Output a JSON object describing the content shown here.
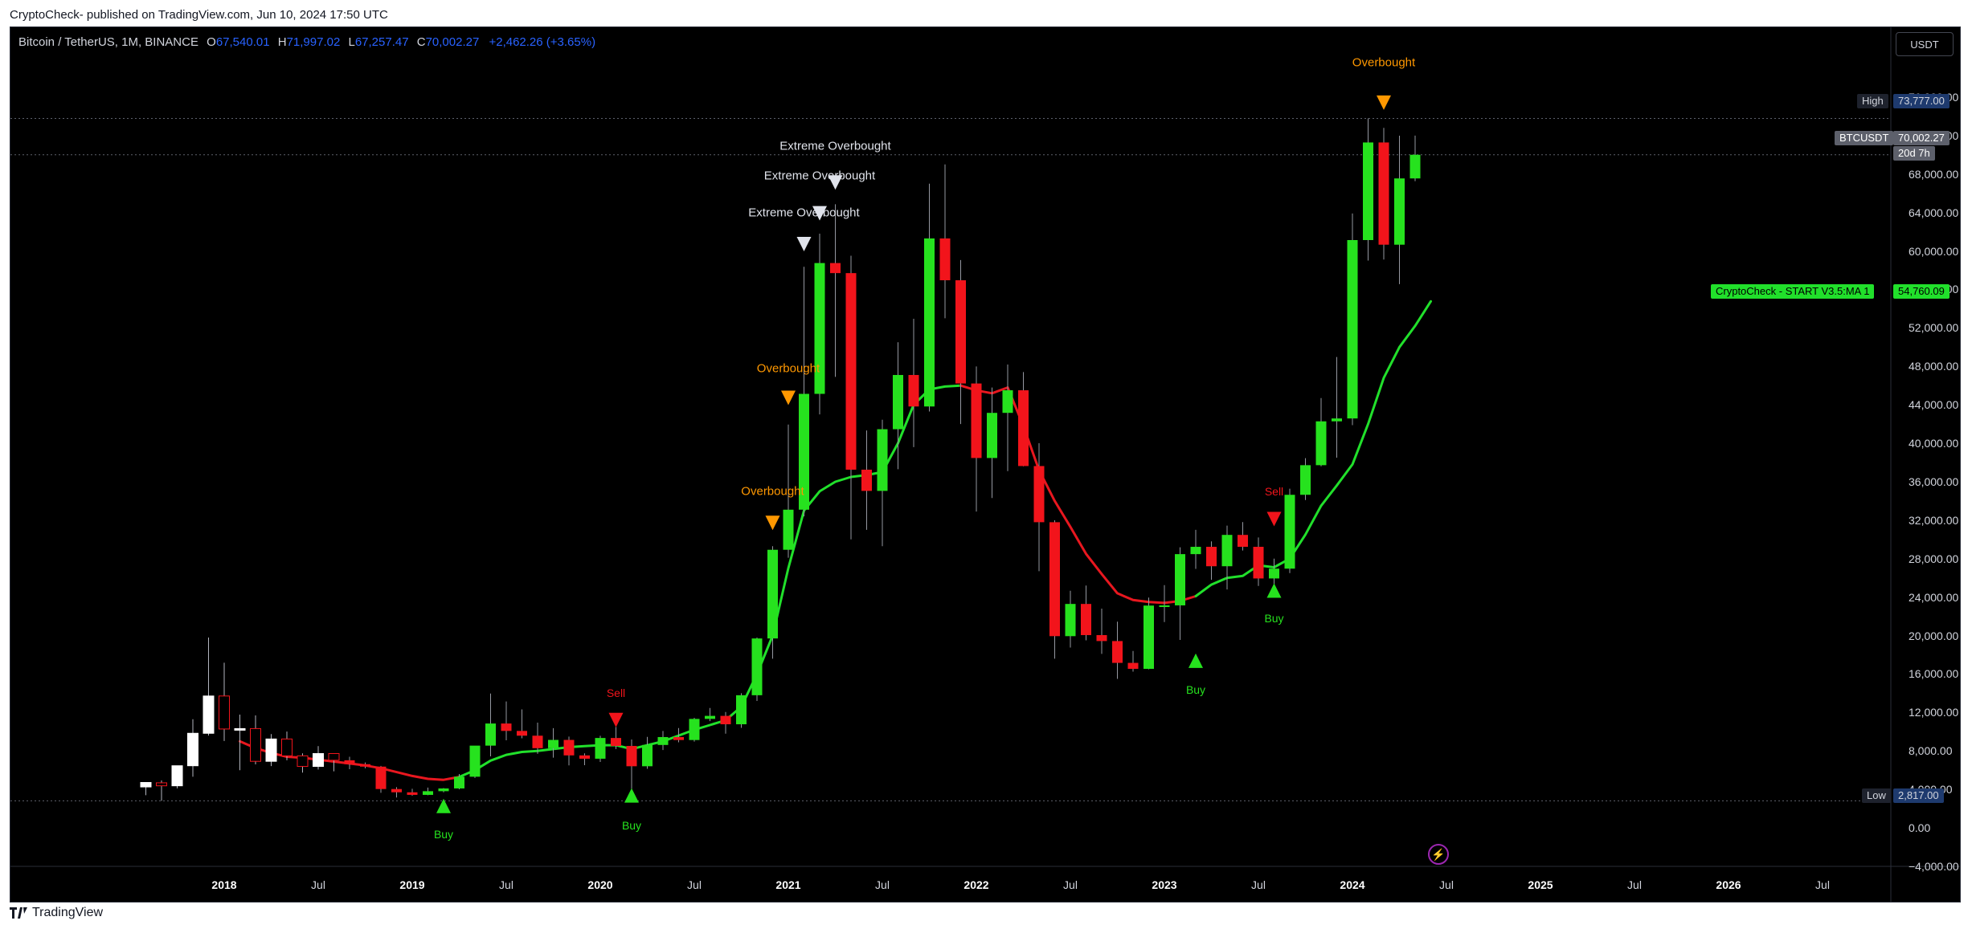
{
  "header": {
    "published_text": "CryptoCheck- published on TradingView.com, Jun 10, 2024 17:50 UTC"
  },
  "symbol_bar": {
    "title": "Bitcoin / TetherUS, 1M, BINANCE",
    "open_label": "O",
    "open": "67,540.01",
    "high_label": "H",
    "high": "71,997.02",
    "low_label": "L",
    "low": "67,257.47",
    "close_label": "C",
    "close": "70,002.27",
    "change": "+2,462.26 (+3.65%)"
  },
  "currency_button": "USDT",
  "price_tags": {
    "high_label": "High",
    "high_value": "73,777.00",
    "current_symbol": "BTCUSDT",
    "current_value": "70,002.27",
    "countdown": "20d 7h",
    "ma_label": "CryptoCheck - START V3.5:MA 1",
    "ma_value": "54,760.09",
    "low_label": "Low",
    "low_value": "2,817.00"
  },
  "footer": {
    "brand": "TradingView"
  },
  "colors": {
    "background": "#000000",
    "up": "#26e21e",
    "down": "#f2141b",
    "ma_up": "#21e02b",
    "ma_down": "#e8171f",
    "overbought": "#ff9800",
    "extreme": "#e0e3eb",
    "pre_candle": "#ffffff",
    "axis_text": "#d1d4dc"
  },
  "chart_data": {
    "type": "candlestick",
    "symbol": "Bitcoin / TetherUS",
    "interval": "1M",
    "exchange": "BINANCE",
    "ylim": [
      -4000,
      80000
    ],
    "y_ticks": [
      -4000,
      0,
      4000,
      8000,
      12000,
      16000,
      20000,
      24000,
      28000,
      32000,
      36000,
      40000,
      44000,
      48000,
      52000,
      56000,
      60000,
      64000,
      68000,
      72000,
      76000
    ],
    "y_tick_labels": [
      "−4,000.00",
      "0.00",
      "4,000.00",
      "8,000.00",
      "12,000.00",
      "16,000.00",
      "20,000.00",
      "24,000.00",
      "28,000.00",
      "32,000.00",
      "36,000.00",
      "40,000.00",
      "44,000.00",
      "48,000.00",
      "52,000.00",
      "56,000.00",
      "60,000.00",
      "64,000.00",
      "68,000.00",
      "72,000.00",
      "76,000.00"
    ],
    "x_ticks": [
      {
        "label": "2018",
        "date": "2018-01",
        "year": true
      },
      {
        "label": "Jul",
        "date": "2018-07",
        "year": false
      },
      {
        "label": "2019",
        "date": "2019-01",
        "year": true
      },
      {
        "label": "Jul",
        "date": "2019-07",
        "year": false
      },
      {
        "label": "2020",
        "date": "2020-01",
        "year": true
      },
      {
        "label": "Jul",
        "date": "2020-07",
        "year": false
      },
      {
        "label": "2021",
        "date": "2021-01",
        "year": true
      },
      {
        "label": "Jul",
        "date": "2021-07",
        "year": false
      },
      {
        "label": "2022",
        "date": "2022-01",
        "year": true
      },
      {
        "label": "Jul",
        "date": "2022-07",
        "year": false
      },
      {
        "label": "2023",
        "date": "2023-01",
        "year": true
      },
      {
        "label": "Jul",
        "date": "2023-07",
        "year": false
      },
      {
        "label": "2024",
        "date": "2024-01",
        "year": true
      },
      {
        "label": "Jul",
        "date": "2024-07",
        "year": false
      },
      {
        "label": "2025",
        "date": "2025-01",
        "year": true
      },
      {
        "label": "Jul",
        "date": "2025-07",
        "year": false
      },
      {
        "label": "2026",
        "date": "2026-01",
        "year": true
      },
      {
        "label": "Jul",
        "date": "2026-07",
        "year": false
      }
    ],
    "first_month": "2017-08",
    "ohlc": [
      [
        4261,
        4745,
        3400,
        4724
      ],
      [
        4689,
        4939,
        2817,
        4378
      ],
      [
        4378,
        6470,
        4110,
        6463
      ],
      [
        6463,
        11300,
        5325,
        9838
      ],
      [
        9838,
        19798,
        9600,
        13716
      ],
      [
        13716,
        17176,
        9035,
        10285
      ],
      [
        10285,
        11786,
        6000,
        10326
      ],
      [
        10326,
        11700,
        6600,
        6923
      ],
      [
        6923,
        9759,
        6425,
        9246
      ],
      [
        9246,
        10020,
        7032,
        7494
      ],
      [
        7494,
        7754,
        5750,
        6391
      ],
      [
        6391,
        8507,
        6070,
        7730
      ],
      [
        7730,
        7500,
        5880,
        7033
      ],
      [
        7033,
        7400,
        6100,
        6625
      ],
      [
        6625,
        6800,
        6200,
        6371
      ],
      [
        6371,
        6450,
        3652,
        4041
      ],
      [
        4041,
        4236,
        3156,
        3702
      ],
      [
        3702,
        4069,
        3349,
        3434
      ],
      [
        3434,
        4198,
        3400,
        3817
      ],
      [
        3817,
        4140,
        3700,
        4103
      ],
      [
        4103,
        5600,
        4012,
        5321
      ],
      [
        5321,
        8300,
        5200,
        8555
      ],
      [
        8555,
        13970,
        7440,
        10855
      ],
      [
        10855,
        13147,
        9110,
        10085
      ],
      [
        10085,
        12325,
        9320,
        9588
      ],
      [
        9588,
        10950,
        7700,
        8289
      ],
      [
        8289,
        10370,
        7300,
        9150
      ],
      [
        9150,
        9500,
        6500,
        7540
      ],
      [
        7540,
        7750,
        6526,
        7195
      ],
      [
        7195,
        9578,
        6850,
        9350
      ],
      [
        9350,
        10500,
        8200,
        8523
      ],
      [
        8523,
        9190,
        3782,
        6410
      ],
      [
        6410,
        9468,
        6150,
        8624
      ],
      [
        8624,
        10080,
        8100,
        9446
      ],
      [
        9446,
        10380,
        8900,
        9137
      ],
      [
        9137,
        11444,
        8970,
        11335
      ],
      [
        11335,
        12468,
        11100,
        11650
      ],
      [
        11650,
        12050,
        9800,
        10776
      ],
      [
        10776,
        14000,
        10400,
        13797
      ],
      [
        13797,
        19800,
        13200,
        19700
      ],
      [
        19700,
        29300,
        17600,
        28923
      ],
      [
        28923,
        41950,
        28100,
        33092
      ],
      [
        33092,
        58350,
        32400,
        45137
      ],
      [
        45137,
        61800,
        43000,
        58740
      ],
      [
        58740,
        64854,
        46900,
        57694
      ],
      [
        57694,
        59500,
        30000,
        37253
      ],
      [
        37253,
        41330,
        31000,
        35046
      ],
      [
        35046,
        42450,
        29300,
        41462
      ],
      [
        41462,
        50500,
        37300,
        47100
      ],
      [
        47100,
        52950,
        39600,
        43824
      ],
      [
        43824,
        67000,
        43300,
        61300
      ],
      [
        61300,
        69000,
        53000,
        56950
      ],
      [
        56950,
        59050,
        42000,
        46216
      ],
      [
        46216,
        47990,
        32900,
        38466
      ],
      [
        38466,
        45800,
        34300,
        43160
      ],
      [
        43160,
        48190,
        37100,
        45510
      ],
      [
        45510,
        47400,
        37600,
        37630
      ],
      [
        37630,
        40000,
        26700,
        31790
      ],
      [
        31790,
        31990,
        17600,
        19940
      ],
      [
        19940,
        24660,
        18750,
        23290
      ],
      [
        23290,
        25200,
        19500,
        20050
      ],
      [
        20050,
        22800,
        18100,
        19430
      ],
      [
        19430,
        21450,
        15500,
        17160
      ],
      [
        17160,
        18400,
        16250,
        16540
      ],
      [
        16540,
        23950,
        16500,
        23120
      ],
      [
        23120,
        25250,
        21400,
        23140
      ],
      [
        23140,
        29180,
        19550,
        28470
      ],
      [
        28470,
        31000,
        26940,
        29230
      ],
      [
        29230,
        29800,
        25800,
        27210
      ],
      [
        27210,
        31430,
        24800,
        30470
      ],
      [
        30470,
        31800,
        28850,
        29230
      ],
      [
        29230,
        30200,
        25160,
        25940
      ],
      [
        25940,
        28000,
        24900,
        26960
      ],
      [
        26960,
        35280,
        26500,
        34640
      ],
      [
        34640,
        38450,
        34100,
        37720
      ],
      [
        37720,
        44700,
        37600,
        42280
      ],
      [
        42280,
        48970,
        38500,
        42580
      ],
      [
        42580,
        63900,
        41880,
        61130
      ],
      [
        61130,
        73777,
        59000,
        71280
      ],
      [
        71280,
        72800,
        59100,
        60650
      ],
      [
        60650,
        71980,
        56550,
        67540
      ],
      [
        67540,
        71997,
        67257,
        70002
      ]
    ],
    "ma_series": [
      {
        "from": "2018-02",
        "to": "2019-04",
        "color": "down",
        "values": [
          9000,
          8300,
          7800,
          7400,
          7300,
          7100,
          6900,
          6700,
          6500,
          6200,
          5800,
          5400,
          5100,
          5000,
          5300
        ]
      },
      {
        "from": "2019-04",
        "to": "2020-03",
        "color": "up",
        "values": [
          5300,
          6000,
          7000,
          7600,
          7900,
          8000,
          8200,
          8400,
          8500,
          8600,
          8600,
          8200
        ]
      },
      {
        "from": "2020-03",
        "to": "2021-06",
        "color": "up",
        "values": [
          8200,
          8600,
          9000,
          9600,
          10200,
          10700,
          11200,
          12600,
          16000,
          20000,
          27000,
          33000,
          35000,
          36000,
          36500,
          36700
        ]
      },
      {
        "from": "2021-06",
        "to": "2021-12",
        "color": "up",
        "values": [
          36700,
          37000,
          40000,
          44000,
          45600,
          45900,
          46000
        ]
      },
      {
        "from": "2021-12",
        "to": "2023-03",
        "color": "down",
        "values": [
          46000,
          45500,
          45200,
          45800,
          41800,
          37200,
          34000,
          31300,
          28500,
          26400,
          24400,
          23700,
          23500,
          23400,
          23600,
          24100
        ]
      },
      {
        "from": "2023-03",
        "to": "2024-06",
        "color": "up",
        "values": [
          24100,
          25300,
          26000,
          26200,
          27300,
          27100,
          28000,
          30500,
          33500,
          35600,
          37800,
          42000,
          46800,
          50000,
          52200,
          54760
        ]
      }
    ],
    "signals": [
      {
        "type": "buy",
        "label": "Buy",
        "date": "2019-03",
        "price": 2200,
        "text_price": -700
      },
      {
        "type": "sell",
        "label": "Sell",
        "date": "2020-02",
        "price": 11300,
        "text_price": 14000
      },
      {
        "type": "buy",
        "label": "Buy",
        "date": "2020-03",
        "price": 3300,
        "text_price": 300
      },
      {
        "type": "overbought",
        "label": "Overbought",
        "date": "2020-12",
        "price": 31800,
        "text_price": 35000
      },
      {
        "type": "overbought",
        "label": "Overbought",
        "date": "2021-01",
        "price": 44800,
        "text_price": 47800
      },
      {
        "type": "extreme",
        "label": "Extreme Overbought",
        "date": "2021-02",
        "price": 60800,
        "text_price": 64000
      },
      {
        "type": "extreme",
        "label": "Extreme Overbought",
        "date": "2021-03",
        "price": 64000,
        "text_price": 67800
      },
      {
        "type": "extreme",
        "label": "Extreme Overbought",
        "date": "2021-04",
        "price": 67200,
        "text_price": 70900
      },
      {
        "type": "buy",
        "label": "Buy",
        "date": "2023-03",
        "price": 17300,
        "text_price": 14400
      },
      {
        "type": "sell",
        "label": "Sell",
        "date": "2023-08",
        "price": 32200,
        "text_price": 35000
      },
      {
        "type": "buy",
        "label": "Buy",
        "date": "2023-08",
        "price": 24600,
        "text_price": 21800
      },
      {
        "type": "overbought",
        "label": "Overbought",
        "date": "2024-03",
        "price": 75500,
        "text_price": 79600
      }
    ],
    "horizontal_lines": [
      {
        "label": "High",
        "price": 73777
      },
      {
        "label": "Low",
        "price": 2817
      },
      {
        "label": "BTCUSDT",
        "price": 70002.27
      }
    ]
  }
}
